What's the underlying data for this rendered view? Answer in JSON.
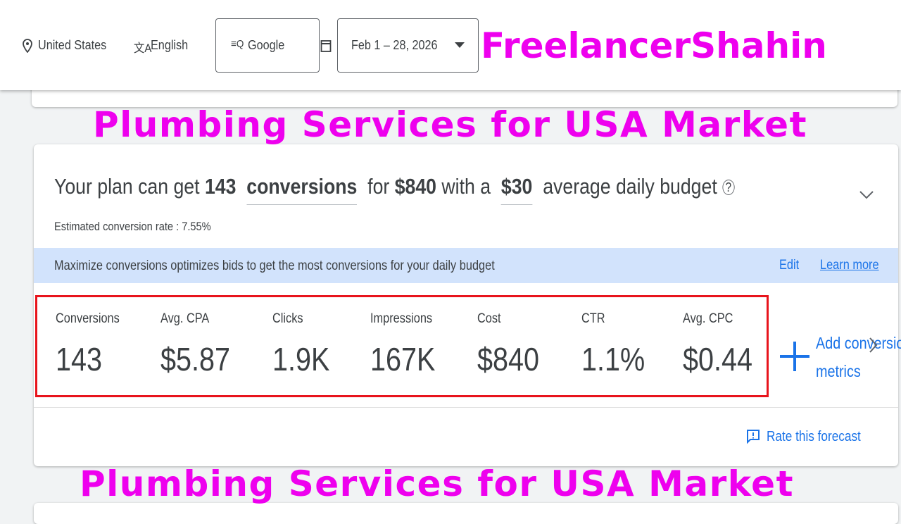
{
  "toolbar": {
    "location": "United States",
    "language": "English",
    "network": "Google",
    "date_range": "Feb 1 – 28, 2026"
  },
  "watermark": {
    "brand": "FreelancerShahin",
    "caption_top": "Plumbing Services for USA Market",
    "caption_bottom": "Plumbing Services for USA Market"
  },
  "forecast": {
    "headline": {
      "prefix": "Your plan can get",
      "conversions": "143",
      "metric": "conversions",
      "for": "for",
      "cost": "$840",
      "with": "with a",
      "budget": "$30",
      "suffix": "average daily budget"
    },
    "conversion_rate": "Estimated conversion rate : 7.55%",
    "banner": {
      "text": "Maximize conversions optimizes bids to get the most conversions for your daily budget",
      "edit": "Edit",
      "learn_more": "Learn more"
    },
    "metrics": [
      {
        "label": "Conversions",
        "value": "143"
      },
      {
        "label": "Avg. CPA",
        "value": "$5.87"
      },
      {
        "label": "Clicks",
        "value": "1.9K"
      },
      {
        "label": "Impressions",
        "value": "167K"
      },
      {
        "label": "Cost",
        "value": "$840"
      },
      {
        "label": "CTR",
        "value": "1.1%"
      },
      {
        "label": "Avg. CPC",
        "value": "$0.44"
      }
    ],
    "add_metrics": [
      "Add conversions",
      "metrics"
    ],
    "rate": "Rate this forecast"
  }
}
